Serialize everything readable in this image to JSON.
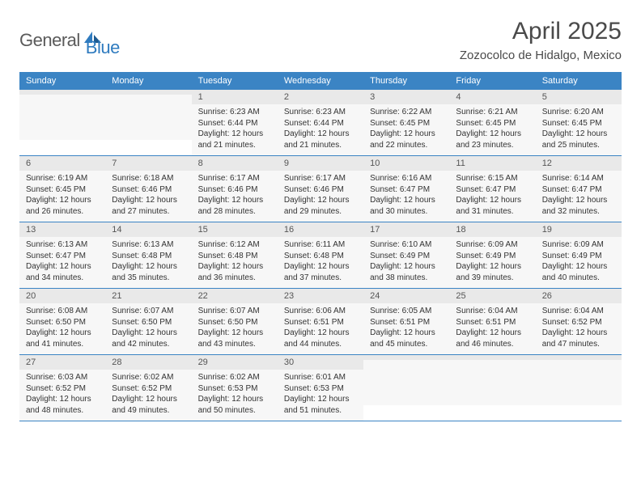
{
  "logo": {
    "text1": "General",
    "text2": "Blue"
  },
  "title": {
    "month": "April 2025",
    "location": "Zozocolco de Hidalgo, Mexico"
  },
  "colors": {
    "header_bg": "#3b84c4",
    "header_text": "#ffffff",
    "daynum_bg": "#e9e9e9",
    "daybody_bg": "#f7f7f7",
    "row_border": "#3b84c4",
    "logo_gray": "#5a5a5a",
    "logo_blue": "#2f7bbf",
    "page_bg": "#ffffff",
    "body_text": "#333333"
  },
  "weekdays": [
    "Sunday",
    "Monday",
    "Tuesday",
    "Wednesday",
    "Thursday",
    "Friday",
    "Saturday"
  ],
  "weeks": [
    [
      {
        "day": "",
        "sunrise": "",
        "sunset": "",
        "daylight": ""
      },
      {
        "day": "",
        "sunrise": "",
        "sunset": "",
        "daylight": ""
      },
      {
        "day": "1",
        "sunrise": "Sunrise: 6:23 AM",
        "sunset": "Sunset: 6:44 PM",
        "daylight": "Daylight: 12 hours and 21 minutes."
      },
      {
        "day": "2",
        "sunrise": "Sunrise: 6:23 AM",
        "sunset": "Sunset: 6:44 PM",
        "daylight": "Daylight: 12 hours and 21 minutes."
      },
      {
        "day": "3",
        "sunrise": "Sunrise: 6:22 AM",
        "sunset": "Sunset: 6:45 PM",
        "daylight": "Daylight: 12 hours and 22 minutes."
      },
      {
        "day": "4",
        "sunrise": "Sunrise: 6:21 AM",
        "sunset": "Sunset: 6:45 PM",
        "daylight": "Daylight: 12 hours and 23 minutes."
      },
      {
        "day": "5",
        "sunrise": "Sunrise: 6:20 AM",
        "sunset": "Sunset: 6:45 PM",
        "daylight": "Daylight: 12 hours and 25 minutes."
      }
    ],
    [
      {
        "day": "6",
        "sunrise": "Sunrise: 6:19 AM",
        "sunset": "Sunset: 6:45 PM",
        "daylight": "Daylight: 12 hours and 26 minutes."
      },
      {
        "day": "7",
        "sunrise": "Sunrise: 6:18 AM",
        "sunset": "Sunset: 6:46 PM",
        "daylight": "Daylight: 12 hours and 27 minutes."
      },
      {
        "day": "8",
        "sunrise": "Sunrise: 6:17 AM",
        "sunset": "Sunset: 6:46 PM",
        "daylight": "Daylight: 12 hours and 28 minutes."
      },
      {
        "day": "9",
        "sunrise": "Sunrise: 6:17 AM",
        "sunset": "Sunset: 6:46 PM",
        "daylight": "Daylight: 12 hours and 29 minutes."
      },
      {
        "day": "10",
        "sunrise": "Sunrise: 6:16 AM",
        "sunset": "Sunset: 6:47 PM",
        "daylight": "Daylight: 12 hours and 30 minutes."
      },
      {
        "day": "11",
        "sunrise": "Sunrise: 6:15 AM",
        "sunset": "Sunset: 6:47 PM",
        "daylight": "Daylight: 12 hours and 31 minutes."
      },
      {
        "day": "12",
        "sunrise": "Sunrise: 6:14 AM",
        "sunset": "Sunset: 6:47 PM",
        "daylight": "Daylight: 12 hours and 32 minutes."
      }
    ],
    [
      {
        "day": "13",
        "sunrise": "Sunrise: 6:13 AM",
        "sunset": "Sunset: 6:47 PM",
        "daylight": "Daylight: 12 hours and 34 minutes."
      },
      {
        "day": "14",
        "sunrise": "Sunrise: 6:13 AM",
        "sunset": "Sunset: 6:48 PM",
        "daylight": "Daylight: 12 hours and 35 minutes."
      },
      {
        "day": "15",
        "sunrise": "Sunrise: 6:12 AM",
        "sunset": "Sunset: 6:48 PM",
        "daylight": "Daylight: 12 hours and 36 minutes."
      },
      {
        "day": "16",
        "sunrise": "Sunrise: 6:11 AM",
        "sunset": "Sunset: 6:48 PM",
        "daylight": "Daylight: 12 hours and 37 minutes."
      },
      {
        "day": "17",
        "sunrise": "Sunrise: 6:10 AM",
        "sunset": "Sunset: 6:49 PM",
        "daylight": "Daylight: 12 hours and 38 minutes."
      },
      {
        "day": "18",
        "sunrise": "Sunrise: 6:09 AM",
        "sunset": "Sunset: 6:49 PM",
        "daylight": "Daylight: 12 hours and 39 minutes."
      },
      {
        "day": "19",
        "sunrise": "Sunrise: 6:09 AM",
        "sunset": "Sunset: 6:49 PM",
        "daylight": "Daylight: 12 hours and 40 minutes."
      }
    ],
    [
      {
        "day": "20",
        "sunrise": "Sunrise: 6:08 AM",
        "sunset": "Sunset: 6:50 PM",
        "daylight": "Daylight: 12 hours and 41 minutes."
      },
      {
        "day": "21",
        "sunrise": "Sunrise: 6:07 AM",
        "sunset": "Sunset: 6:50 PM",
        "daylight": "Daylight: 12 hours and 42 minutes."
      },
      {
        "day": "22",
        "sunrise": "Sunrise: 6:07 AM",
        "sunset": "Sunset: 6:50 PM",
        "daylight": "Daylight: 12 hours and 43 minutes."
      },
      {
        "day": "23",
        "sunrise": "Sunrise: 6:06 AM",
        "sunset": "Sunset: 6:51 PM",
        "daylight": "Daylight: 12 hours and 44 minutes."
      },
      {
        "day": "24",
        "sunrise": "Sunrise: 6:05 AM",
        "sunset": "Sunset: 6:51 PM",
        "daylight": "Daylight: 12 hours and 45 minutes."
      },
      {
        "day": "25",
        "sunrise": "Sunrise: 6:04 AM",
        "sunset": "Sunset: 6:51 PM",
        "daylight": "Daylight: 12 hours and 46 minutes."
      },
      {
        "day": "26",
        "sunrise": "Sunrise: 6:04 AM",
        "sunset": "Sunset: 6:52 PM",
        "daylight": "Daylight: 12 hours and 47 minutes."
      }
    ],
    [
      {
        "day": "27",
        "sunrise": "Sunrise: 6:03 AM",
        "sunset": "Sunset: 6:52 PM",
        "daylight": "Daylight: 12 hours and 48 minutes."
      },
      {
        "day": "28",
        "sunrise": "Sunrise: 6:02 AM",
        "sunset": "Sunset: 6:52 PM",
        "daylight": "Daylight: 12 hours and 49 minutes."
      },
      {
        "day": "29",
        "sunrise": "Sunrise: 6:02 AM",
        "sunset": "Sunset: 6:53 PM",
        "daylight": "Daylight: 12 hours and 50 minutes."
      },
      {
        "day": "30",
        "sunrise": "Sunrise: 6:01 AM",
        "sunset": "Sunset: 6:53 PM",
        "daylight": "Daylight: 12 hours and 51 minutes."
      },
      {
        "day": "",
        "sunrise": "",
        "sunset": "",
        "daylight": ""
      },
      {
        "day": "",
        "sunrise": "",
        "sunset": "",
        "daylight": ""
      },
      {
        "day": "",
        "sunrise": "",
        "sunset": "",
        "daylight": ""
      }
    ]
  ]
}
